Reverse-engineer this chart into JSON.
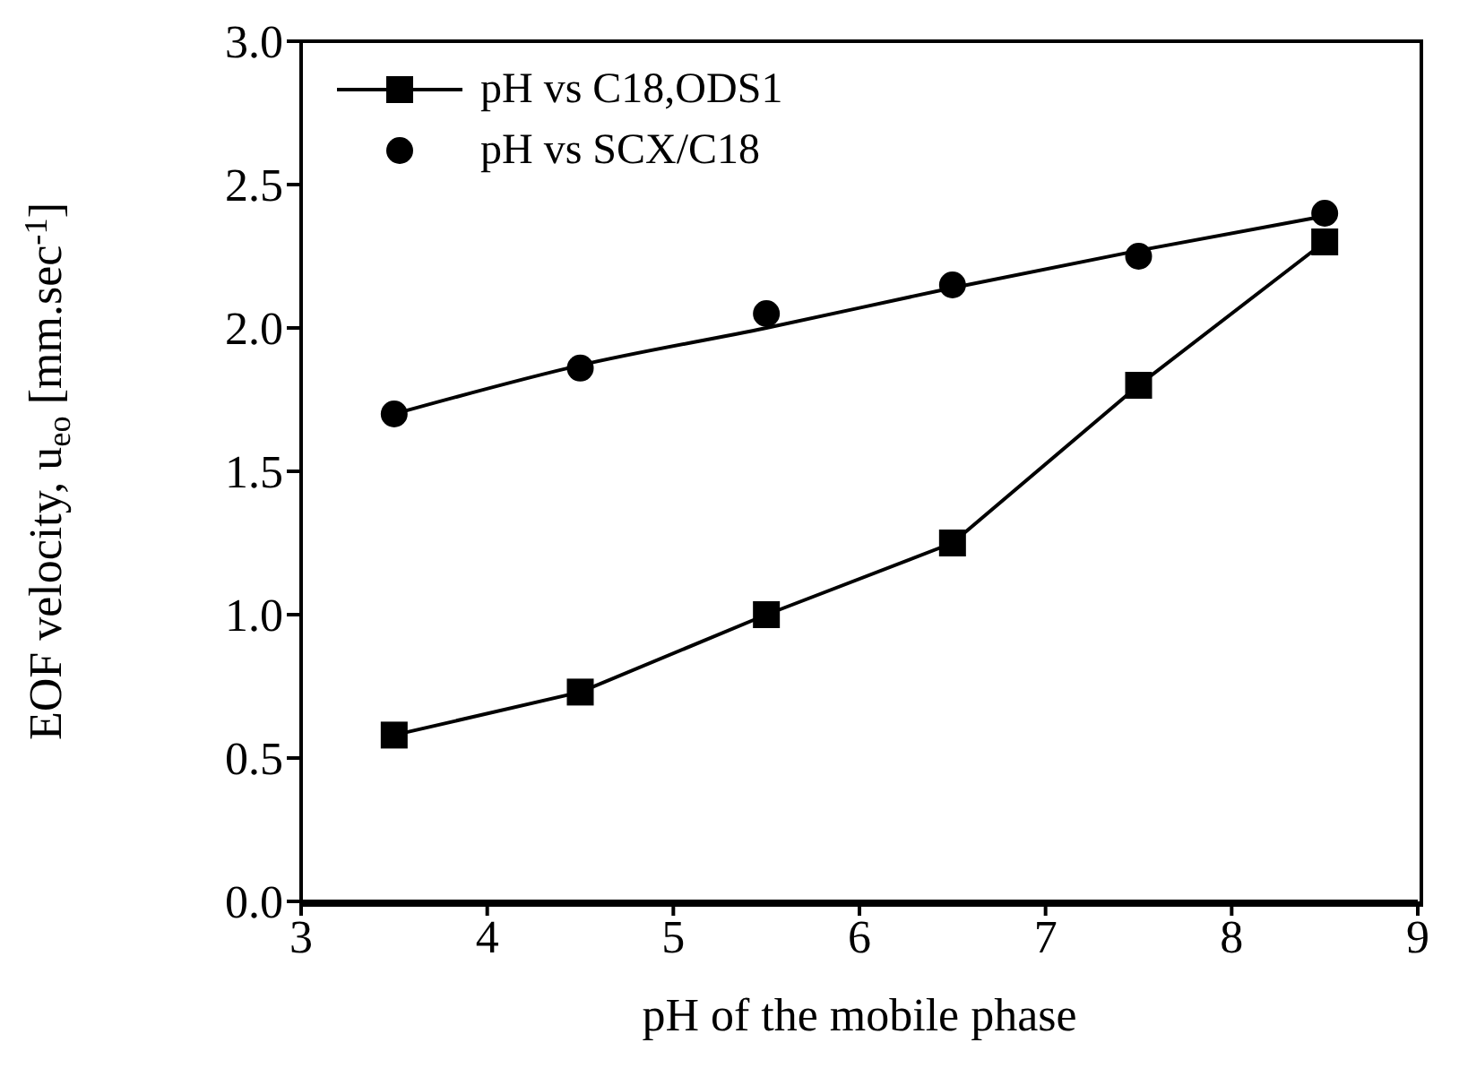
{
  "chart_data": {
    "type": "line",
    "xlabel": "pH of the mobile phase",
    "ylabel": "EOF velocity, u$_{eo}$ [mm.sec$^{-1}$]",
    "xlim": [
      3,
      9
    ],
    "xticks": [
      3,
      4,
      5,
      6,
      7,
      8,
      9
    ],
    "ylim": [
      0,
      3
    ],
    "yticks": [
      {
        "value": 0,
        "label": "0.0"
      },
      {
        "value": 0.5,
        "label": "0.5"
      },
      {
        "value": 1,
        "label": "1.0"
      },
      {
        "value": 1.5,
        "label": "1.5"
      },
      {
        "value": 2,
        "label": "2.0"
      },
      {
        "value": 2.5,
        "label": "2.5"
      },
      {
        "value": 3,
        "label": "3.0"
      }
    ],
    "x": [
      3.5,
      4.5,
      5.5,
      6.5,
      7.5,
      8.5
    ],
    "legend": "top left",
    "series": [
      {
        "name": "pH vs C18,ODS1",
        "marker": "square",
        "color": "#000000",
        "values": [
          0.58,
          0.73,
          1.0,
          1.25,
          1.8,
          2.3
        ]
      },
      {
        "name": "pH vs SCX/C18",
        "type": "scatter",
        "marker": "circle",
        "color": "#000000",
        "values": [
          1.7,
          1.86,
          2.05,
          2.15,
          2.25,
          2.4
        ]
      },
      {
        "type": "line",
        "marker": "none",
        "color": "#000000",
        "x": [
          3.5,
          4.5,
          5.5,
          6.5,
          7.5,
          8.5
        ],
        "values": [
          1.7,
          1.87,
          2.0,
          2.14,
          2.27,
          2.39
        ]
      }
    ]
  }
}
